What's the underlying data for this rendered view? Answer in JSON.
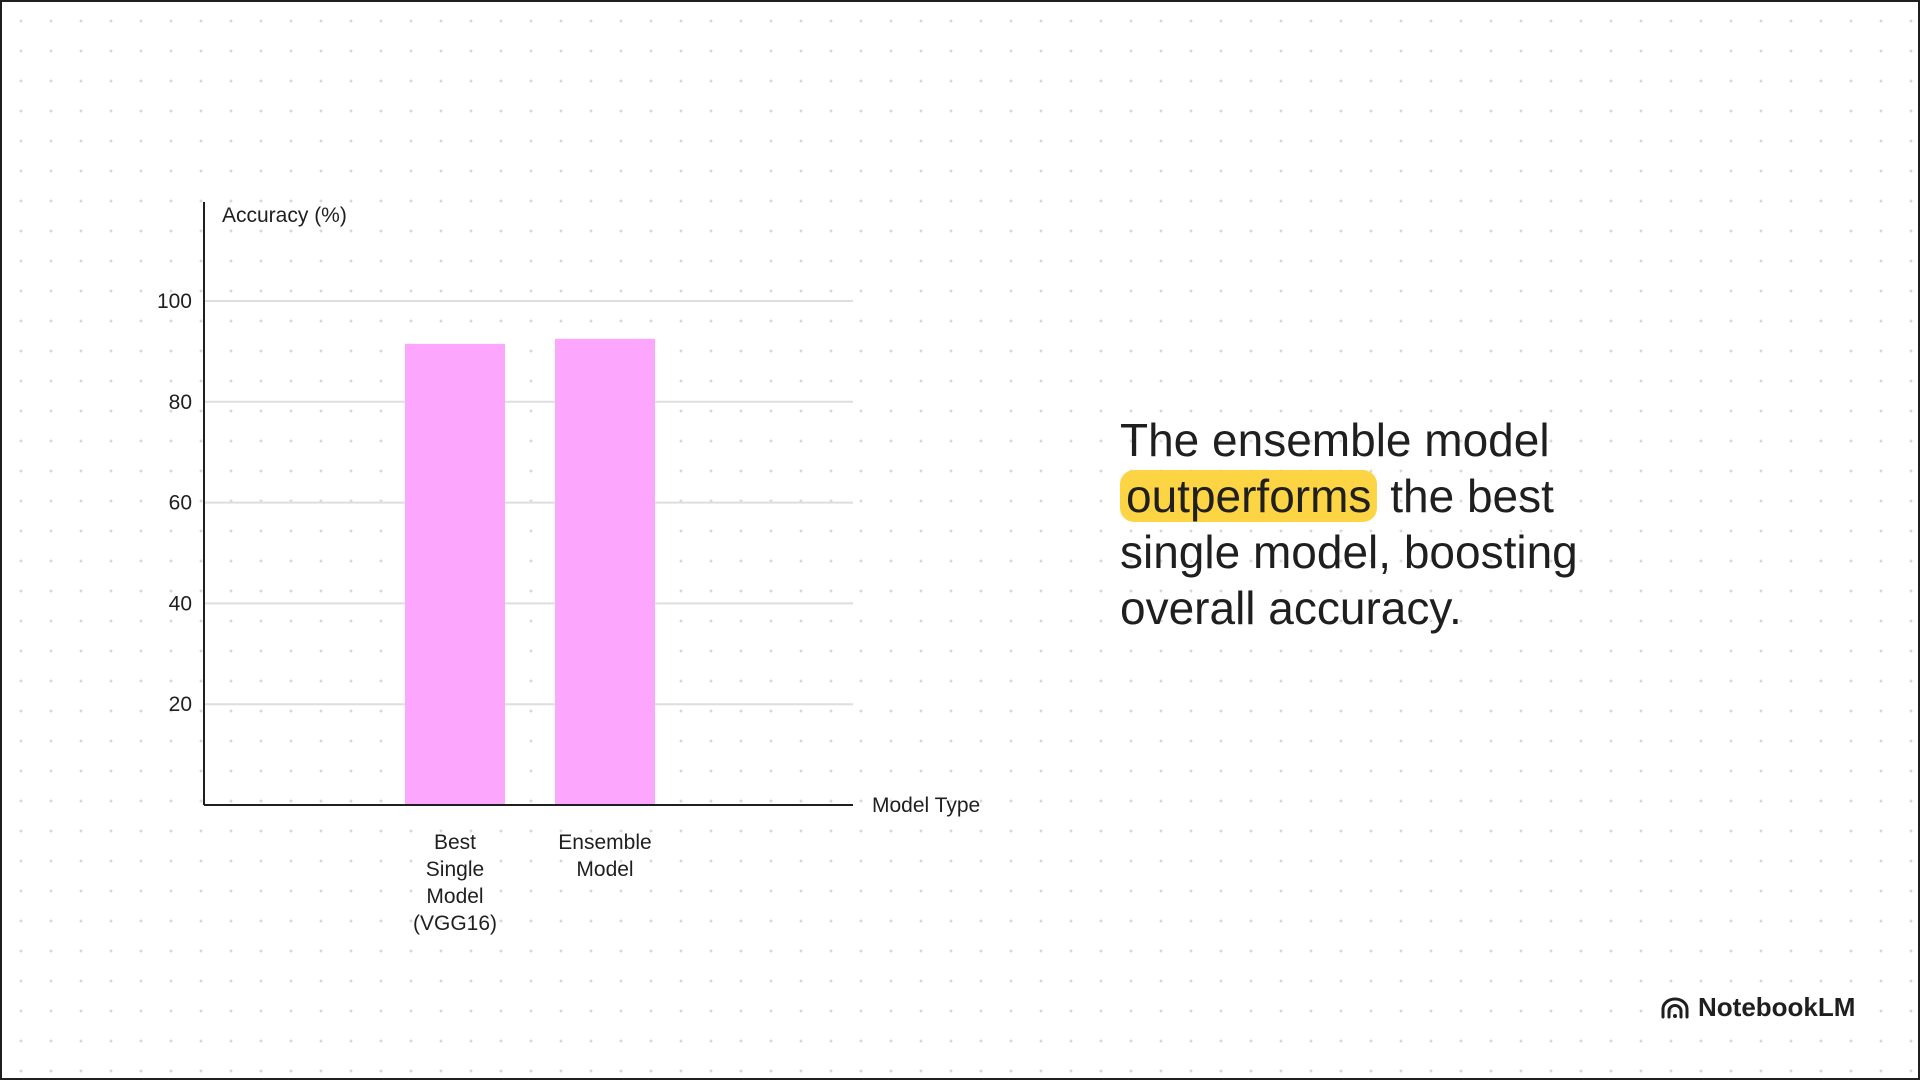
{
  "chart_data": {
    "type": "bar",
    "categories": [
      [
        "Best",
        "Single",
        "Model",
        "(VGG16)"
      ],
      [
        "Ensemble",
        "Model"
      ]
    ],
    "values": [
      91.5,
      92.5
    ],
    "ylabel": "Accuracy (%)",
    "xlabel": "Model Type",
    "ylim": [
      0,
      100
    ],
    "yticks": [
      20,
      40,
      60,
      80,
      100
    ],
    "grid": true,
    "bar_color": "#fca6fd"
  },
  "caption": {
    "before": "The ensemble model",
    "highlight": "outperforms",
    "after": "the best single model, boosting overall accuracy.",
    "highlight_color": "#fdd444"
  },
  "brand": {
    "name": "NotebookLM",
    "icon": "notebooklm-logo-icon"
  }
}
